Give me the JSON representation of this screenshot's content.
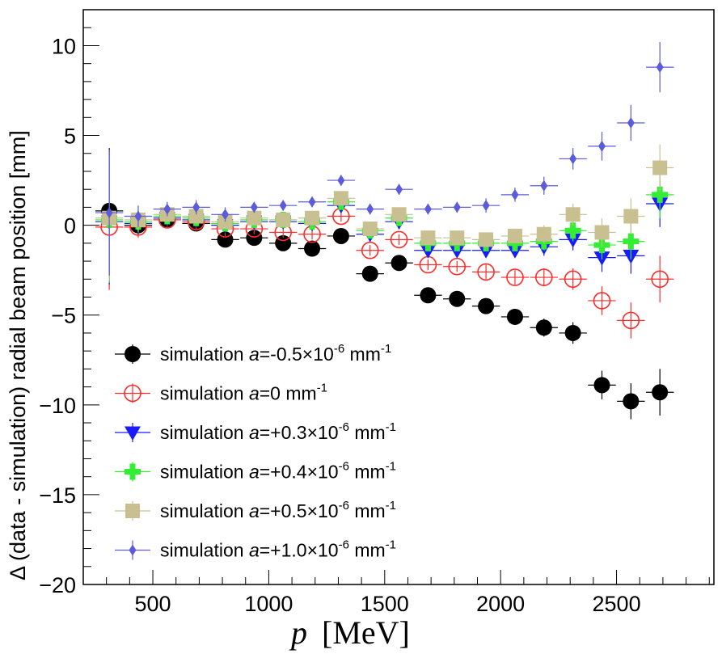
{
  "chart_data": {
    "type": "scatter",
    "xlabel": "p",
    "xlabel_unit": "[MeV]",
    "ylabel": "Δ (data - simulation) radial beam position [mm]",
    "xlim": [
      200,
      2920
    ],
    "ylim": [
      -20,
      12
    ],
    "xticks": [
      500,
      1000,
      1500,
      2000,
      2500
    ],
    "yticks": [
      10,
      5,
      0,
      -5,
      -10,
      -15,
      -20
    ],
    "x": [
      312,
      437,
      562,
      687,
      812,
      937,
      1062,
      1187,
      1312,
      1437,
      1562,
      1687,
      1812,
      1937,
      2062,
      2187,
      2312,
      2437,
      2562,
      2687
    ],
    "xerr": 60,
    "series": [
      {
        "name": "simulation  a=-0.5×10-6 mm-1",
        "legend_prefix": "simulation  ",
        "legend_var": "a",
        "legend_value": "=-0.5×10",
        "legend_exp": "-6",
        "legend_unit": " mm",
        "legend_unit_exp": "-1",
        "marker": "filled-circle",
        "color": "#000000",
        "y": [
          0.8,
          0.0,
          0.3,
          0.1,
          -0.8,
          -0.7,
          -1.0,
          -1.3,
          -0.6,
          -2.7,
          -2.1,
          -3.9,
          -4.1,
          -4.5,
          -5.1,
          -5.7,
          -6.0,
          -8.9,
          -9.8,
          -9.3
        ],
        "yerr": [
          3.5,
          0.6,
          0.4,
          0.4,
          0.4,
          0.3,
          0.3,
          0.3,
          0.3,
          0.3,
          0.3,
          0.3,
          0.3,
          0.4,
          0.4,
          0.5,
          0.6,
          0.8,
          1.0,
          1.3
        ]
      },
      {
        "name": "simulation  a=0 mm-1",
        "legend_prefix": "simulation  ",
        "legend_var": "a",
        "legend_value": "=0",
        "legend_exp": "",
        "legend_unit": " mm",
        "legend_unit_exp": "-1",
        "marker": "open-circle",
        "color": "#ff2a2a",
        "y": [
          -0.1,
          -0.1,
          0.3,
          0.2,
          -0.2,
          -0.2,
          -0.4,
          -0.5,
          0.5,
          -1.4,
          -0.8,
          -2.2,
          -2.3,
          -2.6,
          -2.9,
          -2.9,
          -3.0,
          -4.2,
          -5.3,
          -3.0
        ],
        "yerr": [
          3.5,
          0.6,
          0.4,
          0.4,
          0.4,
          0.3,
          0.3,
          0.3,
          0.3,
          0.3,
          0.3,
          0.3,
          0.3,
          0.4,
          0.4,
          0.5,
          0.6,
          0.8,
          1.0,
          1.3
        ]
      },
      {
        "name": "simulation  a=+0.3×10-6 mm-1",
        "legend_prefix": "simulation  ",
        "legend_var": "a",
        "legend_value": "=+0.3×10",
        "legend_exp": "-6",
        "legend_unit": " mm",
        "legend_unit_exp": "-1",
        "marker": "down-triangle",
        "color": "#1a1aff",
        "y": [
          0.2,
          0.1,
          0.4,
          0.3,
          0.0,
          0.2,
          0.2,
          0.1,
          1.1,
          -0.5,
          0.2,
          -1.4,
          -1.4,
          -1.4,
          -1.4,
          -1.2,
          -0.8,
          -1.8,
          -1.7,
          1.2
        ],
        "yerr": [
          3.5,
          0.6,
          0.4,
          0.4,
          0.4,
          0.3,
          0.3,
          0.3,
          0.3,
          0.3,
          0.3,
          0.3,
          0.3,
          0.4,
          0.4,
          0.5,
          0.6,
          0.8,
          1.0,
          1.3
        ]
      },
      {
        "name": "simulation  a=+0.4×10-6 mm-1",
        "legend_prefix": "simulation  ",
        "legend_var": "a",
        "legend_value": "=+0.4×10",
        "legend_exp": "-6",
        "legend_unit": " mm",
        "legend_unit_exp": "-1",
        "marker": "cross",
        "color": "#33ee33",
        "y": [
          0.3,
          0.2,
          0.5,
          0.4,
          0.1,
          0.3,
          0.3,
          0.2,
          1.3,
          -0.3,
          0.4,
          -1.0,
          -1.0,
          -1.0,
          -1.0,
          -0.9,
          -0.3,
          -1.1,
          -0.9,
          1.7
        ],
        "yerr": [
          3.5,
          0.6,
          0.4,
          0.4,
          0.4,
          0.3,
          0.3,
          0.3,
          0.3,
          0.3,
          0.3,
          0.3,
          0.3,
          0.4,
          0.4,
          0.5,
          0.6,
          0.8,
          1.0,
          1.3
        ]
      },
      {
        "name": "simulation  a=+0.5×10-6 mm-1",
        "legend_prefix": "simulation  ",
        "legend_var": "a",
        "legend_value": "=+0.5×10",
        "legend_exp": "-6",
        "legend_unit": " mm",
        "legend_unit_exp": "-1",
        "marker": "filled-square",
        "color": "#c8c090",
        "y": [
          0.4,
          0.3,
          0.6,
          0.5,
          0.2,
          0.4,
          0.3,
          0.4,
          1.5,
          -0.2,
          0.6,
          -0.7,
          -0.7,
          -0.8,
          -0.6,
          -0.5,
          0.6,
          -0.4,
          0.5,
          3.2
        ],
        "yerr": [
          3.5,
          0.6,
          0.4,
          0.4,
          0.4,
          0.3,
          0.3,
          0.3,
          0.3,
          0.3,
          0.3,
          0.3,
          0.3,
          0.4,
          0.4,
          0.5,
          0.6,
          0.8,
          1.0,
          1.3
        ]
      },
      {
        "name": "simulation  a=+1.0×10-6 mm-1",
        "legend_prefix": "simulation  ",
        "legend_var": "a",
        "legend_value": "=+1.0×10",
        "legend_exp": "-6",
        "legend_unit": " mm",
        "legend_unit_exp": "-1",
        "marker": "diamond",
        "color": "#5b5bdc",
        "y": [
          0.7,
          0.5,
          0.9,
          1.0,
          0.6,
          1.0,
          1.1,
          1.3,
          2.5,
          0.9,
          2.0,
          0.9,
          1.0,
          1.1,
          1.7,
          2.2,
          3.7,
          4.4,
          5.7,
          8.8
        ],
        "yerr": [
          3.5,
          0.6,
          0.4,
          0.4,
          0.4,
          0.3,
          0.3,
          0.3,
          0.3,
          0.3,
          0.3,
          0.3,
          0.3,
          0.4,
          0.4,
          0.5,
          0.6,
          0.8,
          1.0,
          1.4
        ]
      }
    ]
  }
}
